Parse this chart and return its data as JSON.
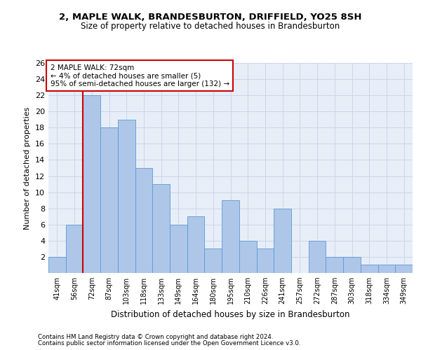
{
  "title1": "2, MAPLE WALK, BRANDESBURTON, DRIFFIELD, YO25 8SH",
  "title2": "Size of property relative to detached houses in Brandesburton",
  "xlabel": "Distribution of detached houses by size in Brandesburton",
  "ylabel": "Number of detached properties",
  "categories": [
    "41sqm",
    "56sqm",
    "72sqm",
    "87sqm",
    "103sqm",
    "118sqm",
    "133sqm",
    "149sqm",
    "164sqm",
    "180sqm",
    "195sqm",
    "210sqm",
    "226sqm",
    "241sqm",
    "257sqm",
    "272sqm",
    "287sqm",
    "303sqm",
    "318sqm",
    "334sqm",
    "349sqm"
  ],
  "values": [
    2,
    6,
    22,
    18,
    19,
    13,
    11,
    6,
    7,
    3,
    9,
    4,
    3,
    8,
    0,
    4,
    2,
    2,
    1,
    1,
    1
  ],
  "bar_color": "#aec6e8",
  "bar_edge_color": "#5a9bd5",
  "highlight_bar_index": 2,
  "highlight_line_color": "#cc0000",
  "annotation_text": "2 MAPLE WALK: 72sqm\n← 4% of detached houses are smaller (5)\n95% of semi-detached houses are larger (132) →",
  "annotation_box_color": "#ffffff",
  "annotation_box_edge_color": "#cc0000",
  "ylim": [
    0,
    26
  ],
  "yticks": [
    0,
    2,
    4,
    6,
    8,
    10,
    12,
    14,
    16,
    18,
    20,
    22,
    24,
    26
  ],
  "grid_color": "#ccd6e8",
  "bg_color": "#e8eef8",
  "footer1": "Contains HM Land Registry data © Crown copyright and database right 2024.",
  "footer2": "Contains public sector information licensed under the Open Government Licence v3.0."
}
